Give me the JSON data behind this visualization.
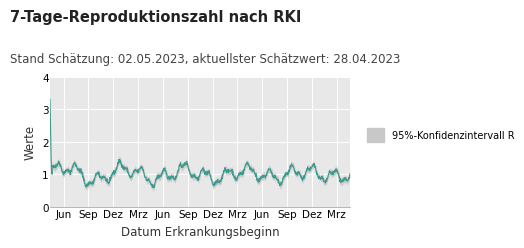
{
  "title": "7-Tage-Reproduktionszahl nach RKI",
  "subtitle": "Stand Schätzung: 02.05.2023, aktuellster Schätzwert: 28.04.2023",
  "xlabel": "Datum Erkrankungsbeginn",
  "ylabel": "Werte",
  "ylim": [
    0,
    4
  ],
  "yticks": [
    0,
    1,
    2,
    3,
    4
  ],
  "xtick_labels": [
    "Jun",
    "Sep",
    "Dez",
    "Mrz",
    "Jun",
    "Sep",
    "Dez",
    "Mrz",
    "Jun",
    "Sep",
    "Dez",
    "Mrz"
  ],
  "line_color": "#3a9b8e",
  "ci_color": "#c8c8c8",
  "plot_bg_color": "#e8e8e8",
  "fig_bg_color": "#ffffff",
  "legend_label": "95%-Konfidenzintervall R",
  "title_fontsize": 10.5,
  "subtitle_fontsize": 8.5,
  "label_fontsize": 8.5,
  "tick_fontsize": 7.5
}
